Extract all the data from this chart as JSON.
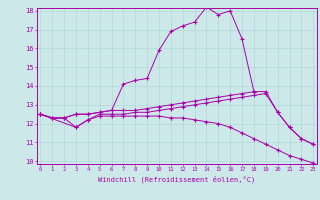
{
  "xlabel": "Windchill (Refroidissement éolien,°C)",
  "ylabel": "",
  "bg_color": "#cce8e8",
  "line_color": "#aa00aa",
  "xmin": 0,
  "xmax": 23,
  "ymin": 10,
  "ymax": 18,
  "xticks": [
    0,
    1,
    2,
    3,
    4,
    5,
    6,
    7,
    8,
    9,
    10,
    11,
    12,
    13,
    14,
    15,
    16,
    17,
    18,
    19,
    20,
    21,
    22,
    23
  ],
  "yticks": [
    10,
    11,
    12,
    13,
    14,
    15,
    16,
    17,
    18
  ],
  "line1_x": [
    0,
    1,
    2,
    3,
    4,
    5,
    6,
    7,
    8,
    9,
    10,
    11,
    12,
    13,
    14,
    15,
    16,
    17,
    18
  ],
  "line1_y": [
    12.5,
    12.3,
    12.3,
    12.5,
    12.5,
    12.6,
    12.7,
    14.1,
    14.3,
    14.4,
    15.9,
    16.9,
    17.2,
    17.4,
    18.2,
    17.8,
    18.0,
    16.5,
    13.7
  ],
  "line2_x": [
    0,
    1,
    2,
    3,
    4,
    5,
    6,
    7,
    8,
    9,
    10,
    11,
    12,
    13,
    14,
    15,
    16,
    17,
    18,
    19,
    20,
    21,
    22,
    23
  ],
  "line2_y": [
    12.5,
    12.3,
    12.3,
    12.5,
    12.5,
    12.6,
    12.7,
    12.7,
    12.7,
    12.8,
    12.9,
    13.0,
    13.1,
    13.2,
    13.3,
    13.4,
    13.5,
    13.6,
    13.7,
    13.7,
    12.6,
    11.8,
    11.2,
    10.9
  ],
  "line3_x": [
    0,
    1,
    2,
    3,
    4,
    5,
    6,
    7,
    8,
    9,
    10,
    11,
    12,
    13,
    14,
    15,
    16,
    17,
    18,
    19,
    20,
    21,
    22,
    23
  ],
  "line3_y": [
    12.5,
    12.3,
    12.3,
    11.8,
    12.2,
    12.5,
    12.5,
    12.5,
    12.6,
    12.6,
    12.7,
    12.8,
    12.9,
    13.0,
    13.1,
    13.2,
    13.3,
    13.4,
    13.5,
    13.6,
    12.6,
    11.8,
    11.2,
    10.9
  ],
  "line4_x": [
    0,
    3,
    4,
    5,
    6,
    7,
    8,
    9,
    10,
    11,
    12,
    13,
    14,
    15,
    16,
    17,
    18,
    19,
    20,
    21,
    22,
    23
  ],
  "line4_y": [
    12.5,
    11.8,
    12.2,
    12.4,
    12.4,
    12.4,
    12.4,
    12.4,
    12.4,
    12.3,
    12.3,
    12.2,
    12.1,
    12.0,
    11.8,
    11.5,
    11.2,
    10.9,
    10.6,
    10.3,
    10.1,
    9.9
  ]
}
